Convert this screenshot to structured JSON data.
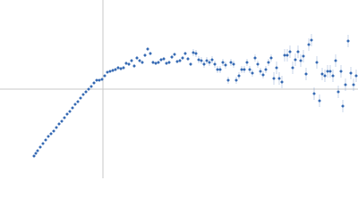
{
  "chart_data": {
    "type": "scatter",
    "x": [
      -77,
      -75,
      -73,
      -70,
      -67,
      -64,
      -61,
      -58,
      -55,
      -52,
      -49,
      -46,
      -43,
      -40,
      -37,
      -34,
      -31,
      -28,
      -25,
      -22,
      -19,
      -16,
      -13,
      -10,
      -7,
      -4,
      -1,
      2,
      5,
      8,
      11,
      14,
      17,
      20,
      23,
      26,
      29,
      32,
      35,
      38,
      41,
      44,
      47,
      50,
      53,
      56,
      59,
      62,
      65,
      68,
      71,
      74,
      77,
      80,
      83,
      86,
      89,
      92,
      95,
      98,
      101,
      104,
      107,
      110,
      113,
      116,
      119,
      122,
      125,
      128,
      131,
      134,
      137,
      140,
      143,
      146,
      149,
      152,
      155,
      158,
      161,
      164,
      167,
      170,
      173,
      176,
      179,
      182,
      185,
      188,
      191,
      194,
      197,
      200,
      203,
      206,
      209,
      212,
      215,
      218,
      221,
      224,
      227,
      230,
      233,
      236,
      239,
      242,
      245,
      248,
      251,
      254,
      257,
      260,
      263,
      266,
      268,
      271,
      274,
      277,
      280,
      283
    ],
    "series": [
      {
        "color": "#3a6db5",
        "values": [
          -75,
          -72,
          -69,
          -65,
          -61,
          -57,
          -53,
          -50,
          -47,
          -43,
          -39,
          -36,
          -32,
          -28,
          -25,
          -21,
          -17,
          -14,
          -10,
          -6,
          -3,
          0,
          3,
          7,
          10,
          10,
          11,
          15,
          19,
          20,
          21,
          22,
          24,
          23,
          24,
          29,
          28,
          32,
          26,
          35,
          32,
          30,
          38,
          45,
          40,
          30,
          29,
          30,
          33,
          34,
          29,
          30,
          36,
          39,
          31,
          32,
          35,
          40,
          34,
          28,
          41,
          40,
          33,
          32,
          28,
          32,
          30,
          33,
          28,
          22,
          22,
          30,
          27,
          10,
          30,
          28,
          10,
          15,
          22,
          22,
          30,
          22,
          18,
          35,
          28,
          20,
          16,
          22,
          30,
          35,
          12,
          24,
          12,
          8,
          38,
          38,
          42,
          24,
          33,
          42,
          32,
          37,
          17,
          50,
          55,
          -5,
          30,
          -13,
          17,
          15,
          20,
          20,
          15,
          32,
          -3,
          20,
          -19,
          5,
          54,
          18,
          5,
          15
        ],
        "errors": [
          1,
          1,
          1,
          1,
          1,
          1,
          1,
          1,
          1,
          1,
          1,
          1,
          1,
          1,
          1,
          1,
          1,
          1,
          1,
          1,
          1,
          1,
          1,
          1,
          1,
          1,
          1,
          1,
          1,
          1,
          2,
          2,
          2,
          2,
          2,
          2,
          2,
          2,
          2,
          2,
          2,
          2,
          2,
          2,
          2,
          2,
          2,
          2,
          2,
          2,
          2,
          2,
          2,
          2,
          2,
          2,
          2,
          2,
          2,
          2,
          4,
          4,
          4,
          4,
          4,
          4,
          4,
          4,
          4,
          4,
          4,
          4,
          4,
          4,
          4,
          4,
          4,
          4,
          4,
          4,
          4,
          4,
          4,
          4,
          4,
          4,
          4,
          4,
          4,
          4,
          7,
          7,
          7,
          7,
          7,
          7,
          7,
          7,
          7,
          7,
          7,
          7,
          7,
          7,
          7,
          7,
          7,
          7,
          7,
          7,
          7,
          7,
          7,
          7,
          7,
          7,
          7,
          7,
          7,
          7,
          7,
          7
        ]
      }
    ],
    "xlim": [
      -115,
      285
    ],
    "ylim": [
      -100,
      100
    ]
  }
}
